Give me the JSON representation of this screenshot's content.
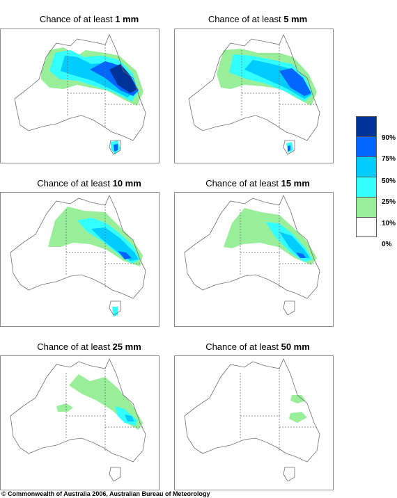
{
  "panels": [
    {
      "title_prefix": "Chance of at least ",
      "amount": "1 mm"
    },
    {
      "title_prefix": "Chance of at least ",
      "amount": "5 mm"
    },
    {
      "title_prefix": "Chance of at least ",
      "amount": "10 mm"
    },
    {
      "title_prefix": "Chance of at least ",
      "amount": "15 mm"
    },
    {
      "title_prefix": "Chance of at least ",
      "amount": "25 mm"
    },
    {
      "title_prefix": "Chance of at least ",
      "amount": "50 mm"
    }
  ],
  "legend": {
    "colors": [
      "#003399",
      "#0066ff",
      "#00ccff",
      "#33ffff",
      "#99ee99",
      "#ffffff"
    ],
    "labels": [
      "90%",
      "75%",
      "50%",
      "25%",
      "10%",
      "0%"
    ]
  },
  "copyright": "© Commonwealth of Australia 2006, Australian Bureau of Meteorology"
}
